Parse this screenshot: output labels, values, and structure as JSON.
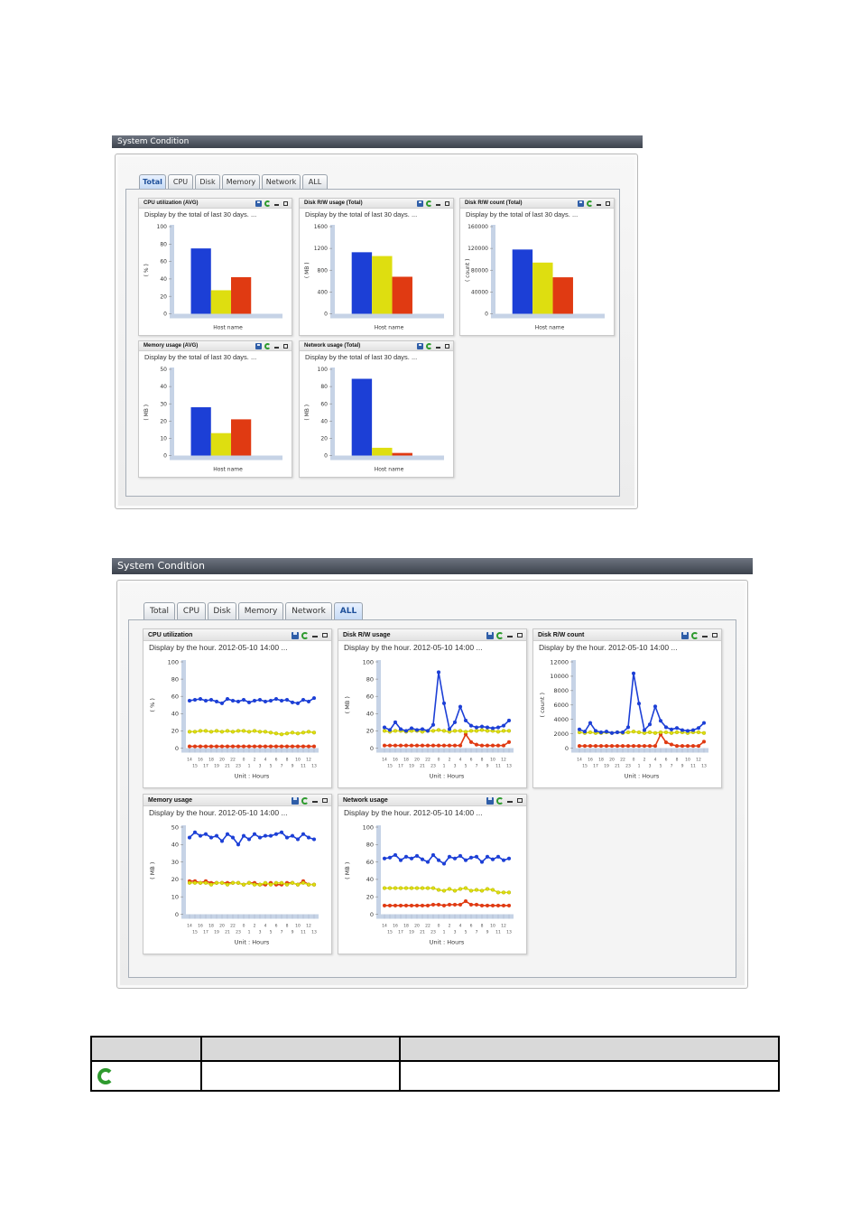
{
  "screen1": {
    "title": "System Condition",
    "tabs": [
      {
        "label": "Total",
        "active": true
      },
      {
        "label": "CPU",
        "active": false
      },
      {
        "label": "Disk",
        "active": false
      },
      {
        "label": "Memory",
        "active": false
      },
      {
        "label": "Network",
        "active": false
      },
      {
        "label": "ALL",
        "active": false
      }
    ],
    "panels": [
      {
        "title": "CPU utilization (AVG)",
        "subtitle": "Display by the total of last 30 days. ...",
        "ylabel": "( % )",
        "xlabel": "Host name"
      },
      {
        "title": "Disk R/W usage (Total)",
        "subtitle": "Display by the total of last 30 days. ...",
        "ylabel": "( MB )",
        "xlabel": "Host name"
      },
      {
        "title": "Disk R/W count (Total)",
        "subtitle": "Display by the total of last 30 days. ...",
        "ylabel": "( count )",
        "xlabel": "Host name"
      },
      {
        "title": "Memory usage (AVG)",
        "subtitle": "Display by the total of last 30 days. ...",
        "ylabel": "( MB )",
        "xlabel": "Host name"
      },
      {
        "title": "Network usage (Total)",
        "subtitle": "Display by the total of last 30 days. ...",
        "ylabel": "( MB )",
        "xlabel": "Host name"
      }
    ]
  },
  "screen2": {
    "title": "System Condition",
    "tabs": [
      {
        "label": "Total",
        "active": false
      },
      {
        "label": "CPU",
        "active": false
      },
      {
        "label": "Disk",
        "active": false
      },
      {
        "label": "Memory",
        "active": false
      },
      {
        "label": "Network",
        "active": false
      },
      {
        "label": "ALL",
        "active": true
      }
    ],
    "panels": [
      {
        "title": "CPU utilization",
        "subtitle": "Display by the hour. 2012-05-10 14:00 ...",
        "ylabel": "( % )",
        "xlabel": "Unit : Hours"
      },
      {
        "title": "Disk R/W usage",
        "subtitle": "Display by the hour. 2012-05-10 14:00 ...",
        "ylabel": "( MB )",
        "xlabel": "Unit : Hours"
      },
      {
        "title": "Disk R/W count",
        "subtitle": "Display by the hour. 2012-05-10 14:00 ...",
        "ylabel": "( count )",
        "xlabel": "Unit : Hours"
      },
      {
        "title": "Memory usage",
        "subtitle": "Display by the hour. 2012-05-10 14:00 ...",
        "ylabel": "( MB )",
        "xlabel": "Unit : Hours"
      },
      {
        "title": "Network usage",
        "subtitle": "Display by the hour. 2012-05-10 14:00 ...",
        "ylabel": "( MB )",
        "xlabel": "Unit : Hours"
      }
    ]
  },
  "colors": {
    "blue": "#1c3fd6",
    "yellow": "#dede10",
    "red": "#e03a12",
    "axis": "#c6d3e6"
  },
  "icons": [
    "save-icon",
    "refresh-icon",
    "minimize-icon",
    "maximize-icon"
  ],
  "legend_table": {
    "headers": [
      "",
      "",
      ""
    ],
    "rows": [
      {
        "icon": "refresh-icon",
        "cells": [
          "",
          ""
        ]
      }
    ]
  },
  "chart_data": [
    {
      "type": "bar",
      "title": "CPU utilization (AVG)",
      "ylabel": "( % )",
      "xlabel": "Host name",
      "ylim": [
        0,
        100
      ],
      "yticks": [
        0,
        20,
        40,
        60,
        80,
        100
      ],
      "values": [
        75,
        27,
        42
      ],
      "colors": [
        "blue",
        "yellow",
        "red"
      ]
    },
    {
      "type": "bar",
      "title": "Disk R/W usage (Total)",
      "ylabel": "( MB )",
      "xlabel": "Host name",
      "ylim": [
        0,
        1600
      ],
      "yticks": [
        0,
        400,
        800,
        1200,
        1600
      ],
      "values": [
        1130,
        1060,
        680
      ],
      "colors": [
        "blue",
        "yellow",
        "red"
      ]
    },
    {
      "type": "bar",
      "title": "Disk R/W count (Total)",
      "ylabel": "( count )",
      "xlabel": "Host name",
      "ylim": [
        0,
        160000
      ],
      "yticks": [
        0,
        40000,
        80000,
        120000,
        160000
      ],
      "values": [
        118000,
        94000,
        67000
      ],
      "colors": [
        "blue",
        "yellow",
        "red"
      ]
    },
    {
      "type": "bar",
      "title": "Memory usage (AVG)",
      "ylabel": "( MB )",
      "xlabel": "Host name",
      "ylim": [
        0,
        50
      ],
      "yticks": [
        0,
        10,
        20,
        30,
        40,
        50
      ],
      "values": [
        28,
        13,
        21
      ],
      "colors": [
        "blue",
        "yellow",
        "red"
      ]
    },
    {
      "type": "bar",
      "title": "Network usage (Total)",
      "ylabel": "( MB )",
      "xlabel": "Host name",
      "ylim": [
        0,
        100
      ],
      "yticks": [
        0,
        20,
        40,
        60,
        80,
        100
      ],
      "values": [
        89,
        9,
        3
      ],
      "colors": [
        "blue",
        "yellow",
        "red"
      ]
    },
    {
      "type": "line",
      "title": "CPU utilization",
      "ylabel": "( % )",
      "xlabel": "Unit : Hours",
      "ylim": [
        0,
        100
      ],
      "yticks": [
        0,
        20,
        40,
        60,
        80,
        100
      ],
      "xticks_top": [
        "14",
        "16",
        "18",
        "20",
        "22",
        "0",
        "2",
        "4",
        "6",
        "8",
        "10",
        "12"
      ],
      "xticks_bottom": [
        "15",
        "17",
        "19",
        "21",
        "23",
        "1",
        "3",
        "5",
        "7",
        "9",
        "11",
        "13"
      ],
      "series": [
        {
          "color": "blue",
          "values": [
            55,
            56,
            57,
            55,
            56,
            54,
            52,
            57,
            55,
            54,
            56,
            53,
            55,
            56,
            54,
            55,
            57,
            55,
            56,
            53,
            52,
            56,
            54,
            58
          ]
        },
        {
          "color": "yellow",
          "values": [
            19,
            19,
            20,
            20,
            19,
            20,
            19,
            20,
            19,
            20,
            20,
            19,
            20,
            19,
            19,
            18,
            17,
            16,
            17,
            18,
            17,
            18,
            19,
            18
          ]
        },
        {
          "color": "red",
          "values": [
            2,
            2,
            2,
            2,
            2,
            2,
            2,
            2,
            2,
            2,
            2,
            2,
            2,
            2,
            2,
            2,
            2,
            2,
            2,
            2,
            2,
            2,
            2,
            2
          ]
        }
      ]
    },
    {
      "type": "line",
      "title": "Disk R/W usage",
      "ylabel": "( MB )",
      "xlabel": "Unit : Hours",
      "ylim": [
        0,
        100
      ],
      "yticks": [
        0,
        20,
        40,
        60,
        80,
        100
      ],
      "xticks_top": [
        "14",
        "16",
        "18",
        "20",
        "22",
        "0",
        "2",
        "4",
        "6",
        "8",
        "10",
        "12"
      ],
      "xticks_bottom": [
        "15",
        "17",
        "19",
        "21",
        "23",
        "1",
        "3",
        "5",
        "7",
        "9",
        "11",
        "13"
      ],
      "series": [
        {
          "color": "blue",
          "values": [
            24,
            21,
            30,
            22,
            20,
            23,
            21,
            22,
            20,
            27,
            88,
            52,
            22,
            30,
            48,
            32,
            26,
            24,
            25,
            24,
            23,
            24,
            26,
            32
          ]
        },
        {
          "color": "yellow",
          "values": [
            20,
            19,
            20,
            20,
            19,
            20,
            20,
            19,
            20,
            20,
            21,
            20,
            19,
            20,
            20,
            19,
            20,
            20,
            21,
            20,
            20,
            19,
            20,
            20
          ]
        },
        {
          "color": "red",
          "values": [
            3,
            3,
            3,
            3,
            3,
            3,
            3,
            3,
            3,
            3,
            3,
            3,
            3,
            3,
            3,
            16,
            7,
            4,
            3,
            3,
            3,
            3,
            3,
            7
          ]
        }
      ]
    },
    {
      "type": "line",
      "title": "Disk R/W count",
      "ylabel": "( count )",
      "xlabel": "Unit : Hours",
      "ylim": [
        0,
        12000
      ],
      "yticks": [
        0,
        2000,
        4000,
        6000,
        8000,
        10000,
        12000
      ],
      "xticks_top": [
        "14",
        "16",
        "18",
        "20",
        "22",
        "0",
        "2",
        "4",
        "6",
        "8",
        "10",
        "12"
      ],
      "xticks_bottom": [
        "15",
        "17",
        "19",
        "21",
        "23",
        "1",
        "3",
        "5",
        "7",
        "9",
        "11",
        "13"
      ],
      "series": [
        {
          "color": "blue",
          "values": [
            2600,
            2300,
            3500,
            2400,
            2200,
            2300,
            2100,
            2200,
            2200,
            2900,
            10400,
            6200,
            2500,
            3300,
            5800,
            3800,
            2900,
            2600,
            2800,
            2500,
            2400,
            2500,
            2800,
            3500
          ]
        },
        {
          "color": "yellow",
          "values": [
            2200,
            2100,
            2200,
            2100,
            2100,
            2200,
            2100,
            2200,
            2100,
            2200,
            2300,
            2200,
            2100,
            2200,
            2100,
            2200,
            2200,
            2100,
            2200,
            2200,
            2100,
            2200,
            2200,
            2100
          ]
        },
        {
          "color": "red",
          "values": [
            300,
            300,
            300,
            300,
            300,
            300,
            300,
            300,
            300,
            300,
            300,
            300,
            300,
            300,
            300,
            1900,
            800,
            500,
            300,
            300,
            300,
            300,
            300,
            900
          ]
        }
      ]
    },
    {
      "type": "line",
      "title": "Memory usage",
      "ylabel": "( MB )",
      "xlabel": "Unit : Hours",
      "ylim": [
        0,
        50
      ],
      "yticks": [
        0,
        10,
        20,
        30,
        40,
        50
      ],
      "xticks_top": [
        "14",
        "16",
        "18",
        "20",
        "22",
        "0",
        "2",
        "4",
        "6",
        "8",
        "10",
        "12"
      ],
      "xticks_bottom": [
        "15",
        "17",
        "19",
        "21",
        "23",
        "1",
        "3",
        "5",
        "7",
        "9",
        "11",
        "13"
      ],
      "series": [
        {
          "color": "blue",
          "values": [
            44,
            47,
            45,
            46,
            44,
            45,
            42,
            46,
            44,
            40,
            45,
            43,
            46,
            44,
            45,
            45,
            46,
            47,
            44,
            45,
            43,
            46,
            44,
            43
          ]
        },
        {
          "color": "yellow",
          "values": [
            18,
            18,
            18,
            18,
            17,
            18,
            18,
            17,
            18,
            18,
            17,
            18,
            17,
            17,
            18,
            17,
            18,
            18,
            17,
            18,
            17,
            18,
            17,
            17
          ]
        },
        {
          "color": "red",
          "values": [
            19,
            19,
            18,
            19,
            18,
            18,
            18,
            18,
            18,
            18,
            17,
            18,
            18,
            17,
            17,
            18,
            17,
            17,
            18,
            18,
            17,
            19,
            17,
            17
          ]
        }
      ]
    },
    {
      "type": "line",
      "title": "Network usage",
      "ylabel": "( MB )",
      "xlabel": "Unit : Hours",
      "ylim": [
        0,
        100
      ],
      "yticks": [
        0,
        20,
        40,
        60,
        80,
        100
      ],
      "xticks_top": [
        "14",
        "16",
        "18",
        "20",
        "22",
        "0",
        "2",
        "4",
        "6",
        "8",
        "10",
        "12"
      ],
      "xticks_bottom": [
        "15",
        "17",
        "19",
        "21",
        "23",
        "1",
        "3",
        "5",
        "7",
        "9",
        "11",
        "13"
      ],
      "series": [
        {
          "color": "blue",
          "values": [
            64,
            65,
            68,
            62,
            66,
            64,
            67,
            63,
            60,
            68,
            62,
            58,
            66,
            64,
            67,
            62,
            65,
            66,
            60,
            66,
            63,
            66,
            62,
            64
          ]
        },
        {
          "color": "yellow",
          "values": [
            30,
            30,
            30,
            30,
            30,
            30,
            30,
            30,
            30,
            30,
            28,
            27,
            29,
            27,
            29,
            30,
            27,
            28,
            27,
            29,
            28,
            25,
            25,
            25
          ]
        },
        {
          "color": "red",
          "values": [
            10,
            10,
            10,
            10,
            10,
            10,
            10,
            10,
            10,
            11,
            11,
            10,
            11,
            11,
            11,
            15,
            11,
            11,
            10,
            10,
            10,
            10,
            10,
            10
          ]
        }
      ]
    }
  ]
}
